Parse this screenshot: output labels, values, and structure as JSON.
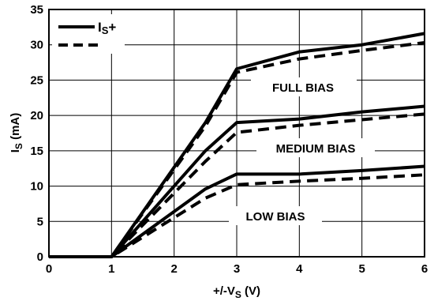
{
  "chart_data": {
    "type": "line",
    "xlabel": {
      "prefix": "+/-V",
      "sub": "S",
      "suffix": " (V)"
    },
    "ylabel": {
      "prefix": "I",
      "sub": "S",
      "suffix": " (mA)"
    },
    "xlim": [
      0,
      6
    ],
    "ylim": [
      0,
      35
    ],
    "xticks": [
      "0",
      "1",
      "2",
      "3",
      "4",
      "5",
      "6"
    ],
    "yticks": [
      "0",
      "5",
      "10",
      "15",
      "20",
      "25",
      "30",
      "35"
    ],
    "grid": true,
    "legend": {
      "position": "top-left",
      "entries": [
        {
          "prefix": "I",
          "sub": "S",
          "suffix": "+",
          "style": "solid"
        },
        {
          "prefix": "",
          "sub": "",
          "suffix": "",
          "style": "dashed"
        }
      ]
    },
    "annotations": [
      "FULL BIAS",
      "MEDIUM BIAS",
      "LOW BIAS"
    ],
    "series": [
      {
        "group": "FULL BIAS",
        "style": "solid",
        "x": [
          0,
          1,
          2.5,
          3,
          4,
          5,
          6
        ],
        "y": [
          0,
          0,
          19,
          26.6,
          29,
          30,
          31.6
        ]
      },
      {
        "group": "FULL BIAS",
        "style": "dashed",
        "x": [
          0,
          1,
          2.5,
          3,
          4,
          5,
          6
        ],
        "y": [
          0,
          0,
          18.5,
          26.1,
          28,
          29.2,
          30.3
        ]
      },
      {
        "group": "MEDIUM BIAS",
        "style": "solid",
        "x": [
          0,
          1,
          2.5,
          3,
          4,
          5,
          6
        ],
        "y": [
          0,
          0,
          15,
          19,
          19.5,
          20.5,
          21.3
        ]
      },
      {
        "group": "MEDIUM BIAS",
        "style": "dashed",
        "x": [
          0,
          1,
          2.5,
          3,
          4,
          5,
          6
        ],
        "y": [
          0,
          0,
          13.5,
          17.6,
          18.6,
          19.4,
          20.2
        ]
      },
      {
        "group": "LOW BIAS",
        "style": "solid",
        "x": [
          0,
          1,
          2.5,
          3,
          4,
          5,
          6
        ],
        "y": [
          0,
          0,
          9.6,
          11.7,
          11.7,
          12.2,
          12.8
        ]
      },
      {
        "group": "LOW BIAS",
        "style": "dashed",
        "x": [
          0,
          1,
          2.5,
          3,
          4,
          5,
          6
        ],
        "y": [
          0,
          0,
          8.3,
          10.2,
          10.7,
          11.1,
          11.6
        ]
      }
    ]
  }
}
